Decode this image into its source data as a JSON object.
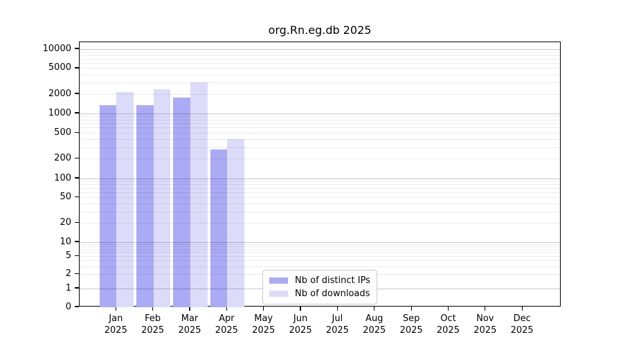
{
  "chart_data": {
    "type": "bar",
    "title": "org.Rn.eg.db 2025",
    "categories": [
      "Jan",
      "Feb",
      "Mar",
      "Apr",
      "May",
      "Jun",
      "Jul",
      "Aug",
      "Sep",
      "Oct",
      "Nov",
      "Dec"
    ],
    "year": "2025",
    "series": [
      {
        "key": "distinct-ips",
        "name": "Nb of distinct IPs",
        "color": "#aaaaf5",
        "values": [
          1330,
          1330,
          1750,
          280,
          null,
          null,
          null,
          null,
          null,
          null,
          null,
          null
        ]
      },
      {
        "key": "downloads",
        "name": "Nb of downloads",
        "color": "#dcdcfa",
        "values": [
          2180,
          2360,
          3040,
          400,
          null,
          null,
          null,
          null,
          null,
          null,
          null,
          null
        ]
      }
    ],
    "yscale": "log",
    "yticks": [
      0,
      1,
      2,
      5,
      10,
      20,
      50,
      100,
      200,
      500,
      1000,
      2000,
      5000,
      10000
    ],
    "ylim": [
      0,
      13000
    ],
    "grid": "horizontal",
    "legend_position": "inside-bottom-center"
  },
  "colors": {
    "bar_distinct_ips": "#aaaaf5",
    "bar_downloads": "#dcdcfa",
    "grid_major": "#c8c8c8",
    "grid_minor": "#ececec",
    "axis": "#000000",
    "legend_border": "#c8c8c8",
    "background": "#ffffff"
  }
}
